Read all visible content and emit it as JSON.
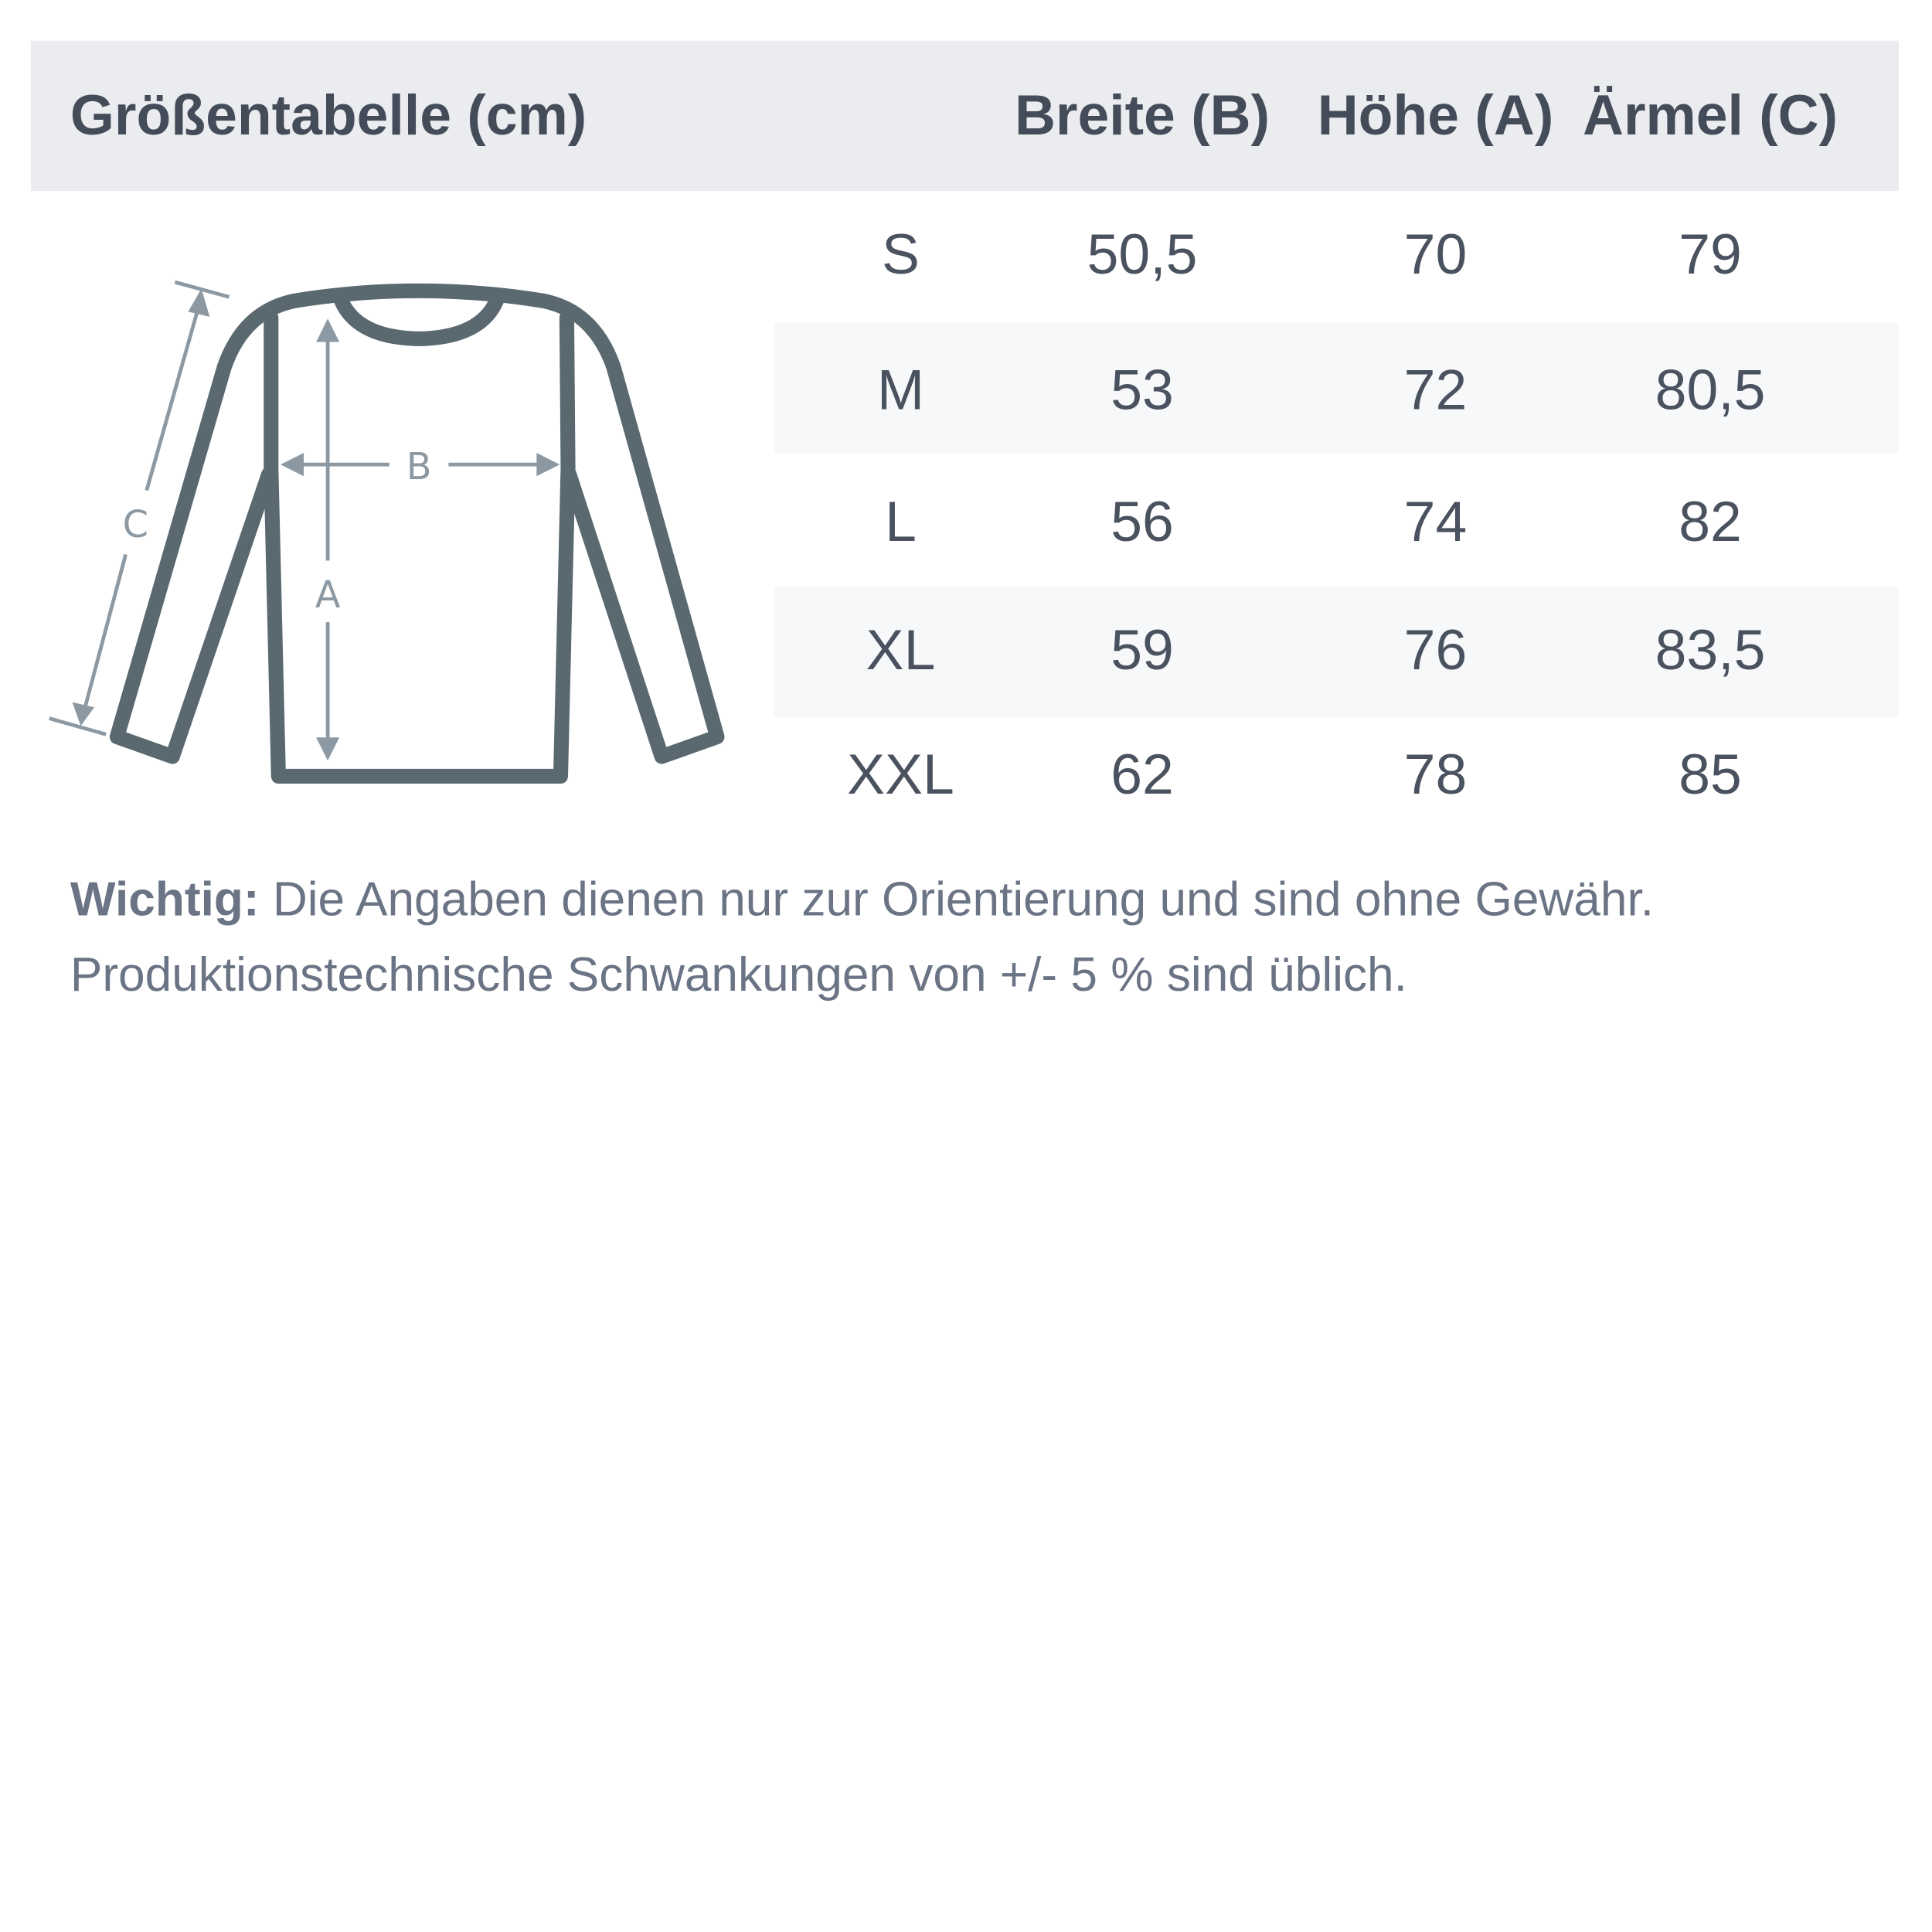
{
  "title": "Größentabelle (cm)",
  "columns": [
    "Breite (B)",
    "Höhe (A)",
    "Ärmel (C)"
  ],
  "rows": [
    {
      "size": "S",
      "values": [
        "50,5",
        "70",
        "79"
      ]
    },
    {
      "size": "M",
      "values": [
        "53",
        "72",
        "80,5"
      ]
    },
    {
      "size": "L",
      "values": [
        "56",
        "74",
        "82"
      ]
    },
    {
      "size": "XL",
      "values": [
        "59",
        "76",
        "83,5"
      ]
    },
    {
      "size": "XXL",
      "values": [
        "62",
        "78",
        "85"
      ]
    }
  ],
  "diagram": {
    "label_a": "A",
    "label_b": "B",
    "label_c": "C"
  },
  "note": {
    "bold": "Wichtig:",
    "line1": " Die Angaben dienen nur zur Orientierung und sind ohne Gewähr.",
    "line2": "Produktionstechnische Schwankungen von +/- 5 % sind üblich."
  },
  "colors": {
    "header_bg": "#ebecef",
    "stripe_bg": "#f7f8fa",
    "shirt": "#5a6870",
    "measure": "#8c99a3"
  }
}
